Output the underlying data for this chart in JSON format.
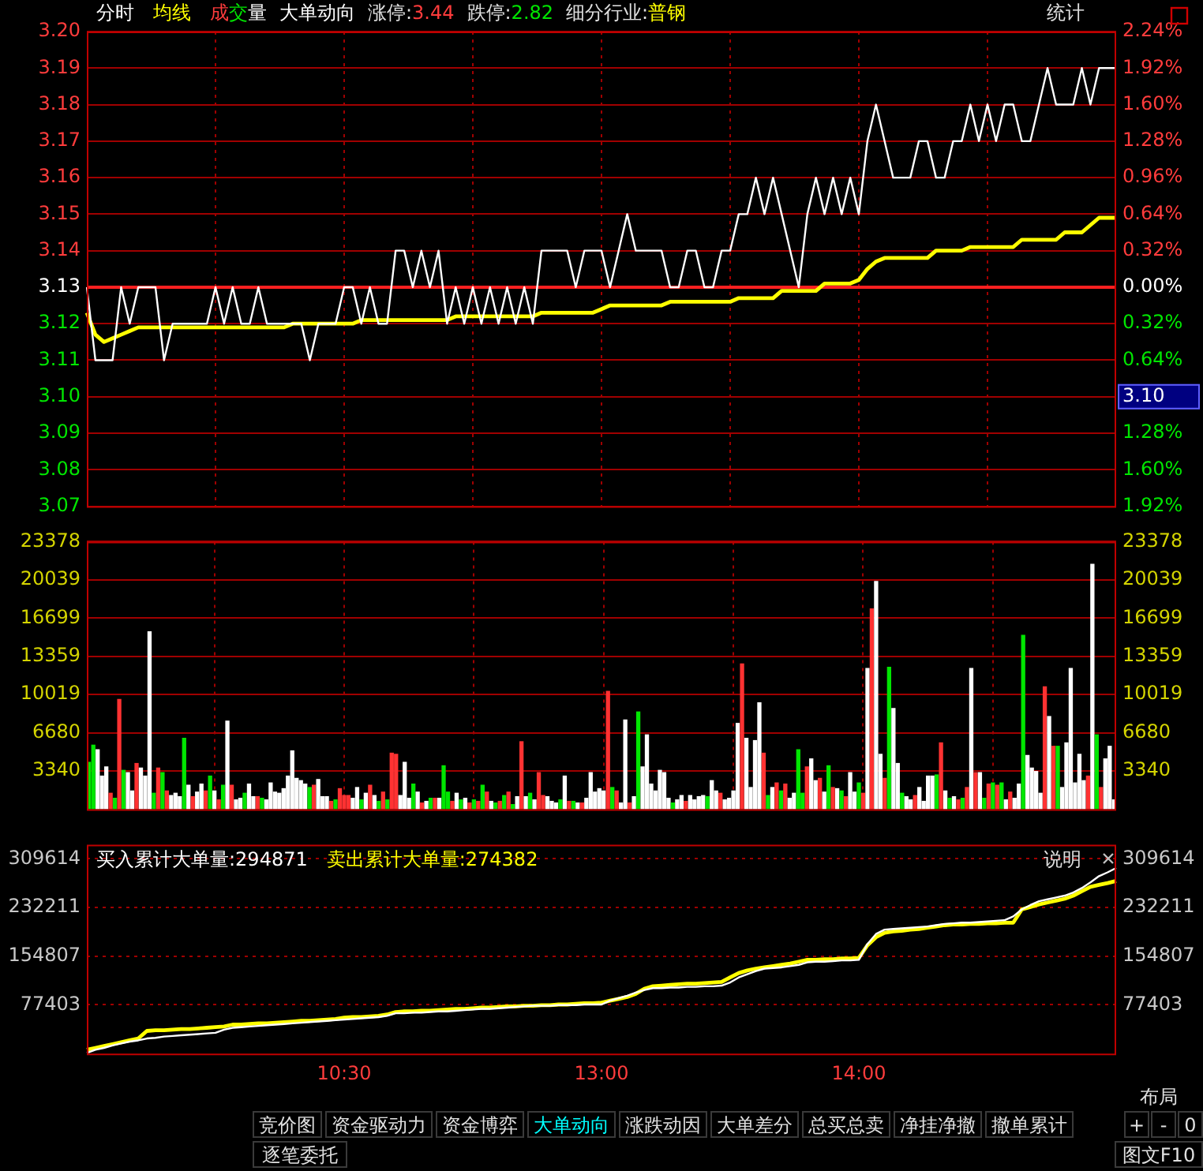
{
  "chart_data": [
    {
      "type": "line",
      "categories": [
        null,
        null,
        null,
        null,
        null,
        null,
        null,
        null,
        null,
        null,
        null,
        null,
        null,
        null,
        null,
        null,
        null,
        null,
        null,
        null,
        null,
        null,
        null,
        null,
        null,
        null,
        null,
        null,
        null,
        null,
        null,
        null,
        null,
        null,
        null,
        null,
        null,
        null,
        null,
        null,
        null,
        null,
        null,
        null,
        null,
        null,
        null,
        null,
        null,
        null,
        null,
        null,
        null,
        null,
        null,
        null,
        null,
        null,
        null,
        null,
        null,
        null,
        null,
        null,
        null,
        null,
        null,
        null,
        null,
        null,
        null,
        null,
        null,
        null,
        null,
        null,
        null,
        null,
        null,
        null,
        null,
        null,
        null,
        null,
        null,
        null,
        null,
        null,
        null,
        null,
        null,
        null,
        null,
        null,
        null,
        null,
        null,
        null,
        null,
        null,
        null,
        null,
        null,
        null,
        null,
        null,
        null,
        null,
        null,
        null,
        null,
        null,
        null,
        null,
        null,
        null,
        null,
        null,
        null,
        null,
        null
      ],
      "ylim": [
        3.07,
        3.2
      ],
      "yticks": [
        3.07,
        3.08,
        3.09,
        {
          "value": 3.1,
          "label": "3.10"
        },
        3.11,
        3.12,
        3.13,
        3.14,
        3.15,
        3.16,
        3.17,
        3.18,
        3.19,
        {
          "value": 3.2,
          "label": "3.20"
        }
      ],
      "y2lim": [
        -1.92,
        2.24
      ],
      "y2ticks": [
        {
          "value": -1.92,
          "label": "1.92%"
        },
        {
          "value": -1.6,
          "label": "1.60%"
        },
        {
          "value": -1.28,
          "label": "1.28%"
        },
        {
          "value": -0.64,
          "label": "0.64%"
        },
        {
          "value": -0.32,
          "label": "0.32%"
        },
        {
          "value": 0,
          "label": "0.00%"
        },
        {
          "value": 0.32,
          "label": "0.32%"
        },
        {
          "value": 0.64,
          "label": "0.64%"
        },
        {
          "value": 0.96,
          "label": "0.96%"
        },
        {
          "value": 1.28,
          "label": "1.28%"
        },
        {
          "value": 1.6,
          "label": "1.60%"
        },
        {
          "value": 1.92,
          "label": "1.92%"
        },
        {
          "value": 2.24,
          "label": "2.24%"
        }
      ],
      "grid": true,
      "tick_labels": "y",
      "ref_lines": [
        {
          "axis": "y",
          "value": 3.13
        }
      ],
      "annotations": [
        "成交量",
        "大单动向",
        "涨停:3.44",
        "跌停:2.82",
        "细分行业:普钢",
        "统计",
        "3.10"
      ],
      "series": [
        {
          "name": "分时",
          "color": "#ffffff",
          "values": [
            3.13,
            3.11,
            3.11,
            3.11,
            3.13,
            3.12,
            3.13,
            3.13,
            3.13,
            3.11,
            3.12,
            3.12,
            3.12,
            3.12,
            3.12,
            3.13,
            3.12,
            3.13,
            3.12,
            3.12,
            3.13,
            3.12,
            3.12,
            3.12,
            3.12,
            3.12,
            3.11,
            3.12,
            3.12,
            3.12,
            3.13,
            3.13,
            3.12,
            3.13,
            3.12,
            3.12,
            3.14,
            3.14,
            3.13,
            3.14,
            3.13,
            3.14,
            3.12,
            3.13,
            3.12,
            3.13,
            3.12,
            3.13,
            3.12,
            3.13,
            3.12,
            3.13,
            3.12,
            3.14,
            3.14,
            3.14,
            3.14,
            3.13,
            3.14,
            3.14,
            3.14,
            3.13,
            3.14,
            3.15,
            3.14,
            3.14,
            3.14,
            3.14,
            3.13,
            3.13,
            3.14,
            3.14,
            3.13,
            3.13,
            3.14,
            3.14,
            3.15,
            3.15,
            3.16,
            3.15,
            3.16,
            3.15,
            3.14,
            3.13,
            3.15,
            3.16,
            3.15,
            3.16,
            3.15,
            3.16,
            3.15,
            3.17,
            3.18,
            3.17,
            3.16,
            3.16,
            3.16,
            3.17,
            3.17,
            3.16,
            3.16,
            3.17,
            3.17,
            3.18,
            3.17,
            3.18,
            3.17,
            3.18,
            3.18,
            3.17,
            3.17,
            3.18,
            3.19,
            3.18,
            3.18,
            3.18,
            3.19,
            3.18,
            3.19,
            3.19,
            3.19
          ]
        },
        {
          "name": "均线",
          "color": "#ffff00",
          "values": [
            3.123,
            3.117,
            3.115,
            3.116,
            3.117,
            3.118,
            3.119,
            3.119,
            3.119,
            3.119,
            3.119,
            3.119,
            3.119,
            3.119,
            3.119,
            3.119,
            3.119,
            3.119,
            3.119,
            3.119,
            3.119,
            3.119,
            3.119,
            3.119,
            3.12,
            3.12,
            3.12,
            3.12,
            3.12,
            3.12,
            3.12,
            3.12,
            3.121,
            3.121,
            3.121,
            3.121,
            3.121,
            3.121,
            3.121,
            3.121,
            3.121,
            3.121,
            3.121,
            3.122,
            3.122,
            3.122,
            3.122,
            3.122,
            3.122,
            3.122,
            3.122,
            3.122,
            3.122,
            3.123,
            3.123,
            3.123,
            3.123,
            3.123,
            3.123,
            3.123,
            3.124,
            3.125,
            3.125,
            3.125,
            3.125,
            3.125,
            3.125,
            3.125,
            3.126,
            3.126,
            3.126,
            3.126,
            3.126,
            3.126,
            3.126,
            3.126,
            3.127,
            3.127,
            3.127,
            3.127,
            3.127,
            3.129,
            3.129,
            3.129,
            3.129,
            3.129,
            3.131,
            3.131,
            3.131,
            3.131,
            3.132,
            3.135,
            3.137,
            3.138,
            3.138,
            3.138,
            3.138,
            3.138,
            3.138,
            3.14,
            3.14,
            3.14,
            3.14,
            3.141,
            3.141,
            3.141,
            3.141,
            3.141,
            3.141,
            3.143,
            3.143,
            3.143,
            3.143,
            3.143,
            3.145,
            3.145,
            3.145,
            3.147,
            3.149,
            3.149,
            3.149
          ]
        }
      ]
    },
    {
      "type": "bar",
      "categories": [
        null,
        null,
        null,
        null,
        null,
        null,
        null,
        null,
        null,
        null,
        null,
        null,
        null,
        null,
        null,
        null,
        null,
        null,
        null,
        null,
        null,
        null,
        null,
        null,
        null,
        null,
        null,
        null,
        null,
        null,
        null,
        null,
        null,
        null,
        null,
        null,
        null,
        null,
        null,
        null,
        null,
        null,
        null,
        null,
        null,
        null,
        null,
        null,
        null,
        null,
        null,
        null,
        null,
        null,
        null,
        null,
        null,
        null,
        null,
        null,
        null,
        null,
        null,
        null,
        null,
        null,
        null,
        null,
        null,
        null,
        null,
        null,
        null,
        null,
        null,
        null,
        null,
        null,
        null,
        null,
        null,
        null,
        null,
        null,
        null,
        null,
        null,
        null,
        null,
        null,
        null,
        null,
        null,
        null,
        null,
        null,
        null,
        null,
        null,
        null,
        null,
        null,
        null,
        null,
        null,
        null,
        null,
        null,
        null,
        null,
        null,
        null,
        null,
        null,
        null,
        null,
        null,
        null,
        null,
        null,
        null,
        null,
        null,
        null,
        null,
        null,
        null,
        null,
        null,
        null,
        null,
        null,
        null,
        null,
        null,
        null,
        null,
        null,
        null,
        null,
        null,
        null,
        null,
        null,
        null,
        null,
        null,
        null,
        null,
        null,
        null,
        null,
        null,
        null,
        null,
        null,
        null,
        null,
        null,
        null,
        null,
        null,
        null,
        null,
        null,
        null,
        null,
        null,
        null,
        null,
        null,
        null,
        null,
        null,
        null,
        null,
        null,
        null,
        null,
        null,
        null,
        null,
        null,
        null,
        null,
        null,
        null,
        null,
        null,
        null,
        null,
        null,
        null,
        null,
        null,
        null,
        null,
        null,
        null,
        null,
        null,
        null,
        null,
        null,
        null,
        null,
        null,
        null,
        null,
        null,
        null,
        null,
        null,
        null,
        null,
        null,
        null,
        null,
        null,
        null,
        null,
        null,
        null,
        null,
        null,
        null,
        null,
        null,
        null,
        null,
        null,
        null,
        null,
        null,
        null,
        null,
        null,
        null
      ],
      "ylim": [
        0,
        23378
      ],
      "yticks": [
        3340,
        6680,
        10019,
        13359,
        16699,
        20039,
        23378
      ],
      "y2lim": [
        0,
        23378
      ],
      "y2ticks": [
        3340,
        6680,
        10019,
        13359,
        16699,
        20039,
        23378
      ],
      "grid": true,
      "tick_labels": "y",
      "values": [
        4100,
        5600,
        5200,
        2900,
        3700,
        1400,
        960,
        9600,
        3400,
        3200,
        1600,
        4000,
        3600,
        2900,
        15500,
        1400,
        3600,
        3200,
        1600,
        1200,
        1400,
        1100,
        6200,
        2100,
        1100,
        1500,
        2200,
        1600,
        2900,
        1600,
        820,
        2100,
        7700,
        2100,
        820,
        960,
        1400,
        2200,
        1100,
        1100,
        960,
        820,
        2300,
        1500,
        1400,
        1800,
        2900,
        5100,
        2700,
        2500,
        2200,
        1900,
        2100,
        2600,
        1100,
        1100,
        690,
        820,
        1800,
        1200,
        1200,
        960,
        1900,
        820,
        1400,
        2100,
        1200,
        690,
        1500,
        820,
        4900,
        4800,
        1200,
        4100,
        960,
        2200,
        1500,
        550,
        690,
        960,
        960,
        960,
        3800,
        1500,
        690,
        1400,
        820,
        960,
        550,
        820,
        690,
        2100,
        1500,
        690,
        550,
        690,
        1200,
        1500,
        410,
        1100,
        5900,
        1100,
        1400,
        820,
        3200,
        1200,
        1100,
        690,
        550,
        820,
        2900,
        690,
        690,
        550,
        550,
        960,
        3200,
        1500,
        1800,
        1600,
        10300,
        1900,
        1600,
        550,
        7800,
        550,
        1100,
        8500,
        3700,
        6500,
        2200,
        1600,
        3400,
        3200,
        960,
        550,
        820,
        1200,
        690,
        1200,
        820,
        1100,
        1200,
        1100,
        2500,
        1600,
        1400,
        820,
        960,
        1600,
        7500,
        12700,
        6200,
        1900,
        6000,
        9300,
        4900,
        1200,
        1900,
        2300,
        1600,
        2200,
        960,
        1400,
        5200,
        1400,
        3700,
        4400,
        2500,
        2700,
        1500,
        3800,
        1900,
        1800,
        1600,
        1100,
        3200,
        1500,
        2300,
        1400,
        12300,
        17500,
        19900,
        4800,
        2700,
        12400,
        8800,
        4000,
        1400,
        1100,
        820,
        1200,
        1900,
        690,
        2900,
        2900,
        3000,
        5800,
        1600,
        960,
        1100,
        820,
        960,
        1900,
        12300,
        3200,
        3200,
        960,
        2200,
        2300,
        2100,
        2300,
        820,
        1500,
        960,
        2200,
        15200,
        4700,
        3600,
        3300,
        1400,
        10700,
        8100,
        5500,
        5500,
        1900,
        5800,
        12300,
        2300,
        4800,
        2500,
        2900,
        21400,
        6500,
        1900,
        4400,
        5500,
        820
      ],
      "colors": [
        "#00e600",
        "#00e600",
        "#ffffff",
        "#ffffff",
        "#ffffff",
        "#ff3232",
        "#00e600",
        "#ff3232",
        "#00e600",
        "#ffffff",
        "#ffffff",
        "#ff3232",
        "#ffffff",
        "#ffffff",
        "#ffffff",
        "#00e600",
        "#ff3232",
        "#00e600",
        "#ff3232",
        "#ffffff",
        "#ffffff",
        "#ffffff",
        "#00e600",
        "#ffffff",
        "#ff3232",
        "#ffffff",
        "#ffffff",
        "#ff3232",
        "#00e600",
        "#ffffff",
        "#ff3232",
        "#00e600",
        "#ffffff",
        "#ff3232",
        "#ffffff",
        "#ffffff",
        "#00e600",
        "#ffffff",
        "#ffffff",
        "#ff3232",
        "#00e600",
        "#ffffff",
        "#ffffff",
        "#ffffff",
        "#ffffff",
        "#ffffff",
        "#ffffff",
        "#ffffff",
        "#ffffff",
        "#ffffff",
        "#ffffff",
        "#00e600",
        "#ff3232",
        "#ffffff",
        "#ffffff",
        "#ffffff",
        "#ff3232",
        "#00e600",
        "#ff3232",
        "#ff3232",
        "#ff3232",
        "#ffffff",
        "#ffffff",
        "#00e600",
        "#ffffff",
        "#ff3232",
        "#ffffff",
        "#00e600",
        "#ff3232",
        "#00e600",
        "#ff3232",
        "#ff3232",
        "#ffffff",
        "#ffffff",
        "#ffffff",
        "#00e600",
        "#ffffff",
        "#ff3232",
        "#ffffff",
        "#00e600",
        "#ff3232",
        "#ffffff",
        "#00e600",
        "#00e600",
        "#ff3232",
        "#ffffff",
        "#00e600",
        "#ffffff",
        "#ff3232",
        "#00e600",
        "#ff3232",
        "#00e600",
        "#ff3232",
        "#ffffff",
        "#00e600",
        "#ff3232",
        "#00e600",
        "#ff3232",
        "#00e600",
        "#ffffff",
        "#ff3232",
        "#ffffff",
        "#00e600",
        "#ffffff",
        "#ff3232",
        "#ff3232",
        "#ffffff",
        "#ffffff",
        "#ffffff",
        "#00e600",
        "#ffffff",
        "#ff3232",
        "#00e600",
        "#ffffff",
        "#ff3232",
        "#ffffff",
        "#ffffff",
        "#ffffff",
        "#ffffff",
        "#ffffff",
        "#ff3232",
        "#00e600",
        "#ff3232",
        "#ffffff",
        "#ffffff",
        "#ff3232",
        "#ffffff",
        "#00e600",
        "#ffffff",
        "#ffffff",
        "#ffffff",
        "#ffffff",
        "#ffffff",
        "#ffffff",
        "#ffffff",
        "#00e600",
        "#ffffff",
        "#ffffff",
        "#ff3232",
        "#ffffff",
        "#ffffff",
        "#ffffff",
        "#ffffff",
        "#00e600",
        "#ffffff",
        "#ffffff",
        "#ff3232",
        "#ffffff",
        "#ffffff",
        "#ffffff",
        "#ffffff",
        "#ff3232",
        "#ffffff",
        "#ffffff",
        "#ffffff",
        "#ffffff",
        "#ff3232",
        "#00e600",
        "#ffffff",
        "#ff3232",
        "#00e600",
        "#ff3232",
        "#ffffff",
        "#ffffff",
        "#00e600",
        "#00e600",
        "#ff3232",
        "#ffffff",
        "#ffffff",
        "#ff3232",
        "#ffffff",
        "#00e600",
        "#ff3232",
        "#ffffff",
        "#00e600",
        "#ff3232",
        "#ffffff",
        "#ffffff",
        "#00e600",
        "#ff3232",
        "#ffffff",
        "#ff3232",
        "#ffffff",
        "#ffffff",
        "#ff3232",
        "#00e600",
        "#ffffff",
        "#ffffff",
        "#00e600",
        "#ffffff",
        "#ffffff",
        "#ff3232",
        "#ffffff",
        "#ffffff",
        "#ffffff",
        "#ffffff",
        "#00e600",
        "#ff3232",
        "#ffffff",
        "#00e600",
        "#ffffff",
        "#ff3232",
        "#00e600",
        "#ff3232",
        "#ffffff",
        "#ff3232",
        "#ffffff",
        "#00e600",
        "#ff3232",
        "#00e600",
        "#ff3232",
        "#00e600",
        "#ffffff",
        "#ff3232",
        "#ffffff",
        "#ffffff",
        "#00e600",
        "#ffffff",
        "#ffffff",
        "#ffffff",
        "#ffffff",
        "#ff3232",
        "#ffffff",
        "#ff3232",
        "#00e600",
        "#ffffff",
        "#ffffff",
        "#ffffff",
        "#ffffff",
        "#ffffff",
        "#ffffff",
        "#ff3232",
        "#ffffff",
        "#00e600",
        "#ff3232",
        "#ffffff",
        "#ffffff",
        "#ffffff"
      ]
    },
    {
      "type": "line",
      "categories": [
        null,
        null,
        null,
        null,
        null,
        null,
        null,
        null,
        null,
        null,
        null,
        null,
        null,
        null,
        null,
        null,
        null,
        null,
        null,
        null,
        null,
        null,
        null,
        null,
        null,
        null,
        null,
        null,
        null,
        null,
        "10:30",
        null,
        null,
        null,
        null,
        null,
        null,
        null,
        null,
        null,
        null,
        null,
        null,
        null,
        null,
        null,
        null,
        null,
        null,
        null,
        null,
        null,
        null,
        null,
        null,
        null,
        null,
        null,
        null,
        null,
        "13:00",
        null,
        null,
        null,
        null,
        null,
        null,
        null,
        null,
        null,
        null,
        null,
        null,
        null,
        null,
        null,
        null,
        null,
        null,
        null,
        null,
        null,
        null,
        null,
        null,
        null,
        null,
        null,
        null,
        null,
        "14:00",
        null,
        null,
        null,
        null,
        null,
        null,
        null,
        null,
        null,
        null,
        null,
        null,
        null,
        null,
        null,
        null,
        null,
        null,
        null,
        null,
        null,
        null,
        null,
        null,
        null,
        null,
        null,
        null,
        null,
        null
      ],
      "ylim": [
        0,
        332000
      ],
      "yticks": [
        77403,
        154807,
        232211,
        309614
      ],
      "y2lim": [
        0,
        332000
      ],
      "y2ticks": [
        77403,
        154807,
        232211,
        309614
      ],
      "grid": "y",
      "annotations": [
        "说明",
        "竞价图",
        "资金驱动力",
        "资金博弈",
        "大单动向",
        "涨跌动因",
        "大单差分",
        "总买总卖",
        "净挂净撤",
        "撤单累计",
        "+",
        "-",
        "0",
        "逐笔委托",
        "图文F10",
        "布局"
      ],
      "series": [
        {
          "name": "买入累计大单量:294871",
          "color": "#ffffff",
          "values": [
            1000,
            6000,
            9000,
            13000,
            16000,
            19000,
            21000,
            24000,
            25000,
            27000,
            28000,
            29000,
            30000,
            31000,
            32000,
            33000,
            38000,
            41000,
            42000,
            43000,
            44000,
            45000,
            46000,
            47000,
            48000,
            49000,
            50000,
            51000,
            52000,
            53000,
            54000,
            55000,
            56000,
            57000,
            58000,
            60000,
            64000,
            64000,
            65000,
            65000,
            66000,
            67000,
            67000,
            68000,
            69000,
            70000,
            71000,
            71000,
            72000,
            73000,
            74000,
            75000,
            76000,
            76000,
            76000,
            77000,
            77000,
            77000,
            78000,
            78000,
            78000,
            84000,
            88000,
            92000,
            97000,
            101000,
            104000,
            104000,
            105000,
            105000,
            106000,
            106000,
            107000,
            107000,
            108000,
            113000,
            121000,
            126000,
            131000,
            135000,
            136000,
            137000,
            139000,
            141000,
            145000,
            146000,
            146000,
            147000,
            148000,
            148000,
            149000,
            174000,
            190000,
            197000,
            198000,
            199000,
            200000,
            201000,
            202000,
            204000,
            206000,
            207000,
            208000,
            208000,
            209000,
            210000,
            211000,
            212000,
            218000,
            229000,
            236000,
            242000,
            245000,
            248000,
            251000,
            256000,
            263000,
            272000,
            282000,
            288000,
            294871
          ]
        },
        {
          "name": "卖出累计大单量:274382",
          "color": "#ffff00",
          "values": [
            6000,
            9000,
            12000,
            15000,
            18000,
            21000,
            24000,
            36000,
            37000,
            37000,
            38000,
            39000,
            39000,
            40000,
            41000,
            42000,
            43000,
            46000,
            46000,
            47000,
            48000,
            48000,
            49000,
            50000,
            51000,
            52000,
            52000,
            53000,
            54000,
            55000,
            57000,
            58000,
            58000,
            59000,
            60000,
            62000,
            66000,
            67000,
            67000,
            68000,
            68000,
            69000,
            70000,
            71000,
            71000,
            72000,
            73000,
            73000,
            74000,
            75000,
            75000,
            76000,
            76000,
            77000,
            77000,
            78000,
            78000,
            79000,
            80000,
            80000,
            81000,
            84000,
            87000,
            90000,
            95000,
            103000,
            107000,
            108000,
            109000,
            110000,
            111000,
            111000,
            112000,
            113000,
            114000,
            121000,
            128000,
            132000,
            135000,
            137000,
            139000,
            141000,
            143000,
            146000,
            149000,
            149000,
            150000,
            150000,
            151000,
            151000,
            152000,
            172000,
            185000,
            192000,
            194000,
            195000,
            197000,
            198000,
            200000,
            202000,
            204000,
            205000,
            205000,
            206000,
            206000,
            207000,
            207000,
            208000,
            208000,
            229000,
            233000,
            237000,
            240000,
            243000,
            246000,
            251000,
            258000,
            265000,
            268000,
            271000,
            274382
          ]
        }
      ]
    }
  ]
}
